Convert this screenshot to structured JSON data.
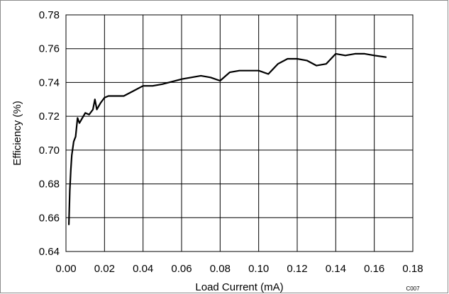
{
  "chart_data": {
    "type": "line",
    "title": "",
    "xlabel": "Load Current (mA)",
    "ylabel": "Efficiency (%)",
    "xlim": [
      0,
      0.18
    ],
    "ylim": [
      0.64,
      0.78
    ],
    "grid": true,
    "legend": "none",
    "code_label": "C007",
    "x_ticks": [
      "0.00",
      "0.02",
      "0.04",
      "0.06",
      "0.08",
      "0.10",
      "0.12",
      "0.14",
      "0.16",
      "0.18"
    ],
    "y_ticks": [
      "0.64",
      "0.66",
      "0.68",
      "0.70",
      "0.72",
      "0.74",
      "0.76",
      "0.78"
    ],
    "line_color": "#000000",
    "series": [
      {
        "x": [
          0.0015,
          0.002,
          0.0025,
          0.003,
          0.004,
          0.005,
          0.006,
          0.007,
          0.008,
          0.01,
          0.012,
          0.014,
          0.015,
          0.016,
          0.017,
          0.018,
          0.02,
          0.022,
          0.025,
          0.03,
          0.035,
          0.04,
          0.045,
          0.05,
          0.06,
          0.07,
          0.075,
          0.08,
          0.085,
          0.09,
          0.1,
          0.105,
          0.11,
          0.115,
          0.12,
          0.125,
          0.13,
          0.135,
          0.14,
          0.145,
          0.15,
          0.155,
          0.16,
          0.166
        ],
        "y": [
          0.656,
          0.676,
          0.688,
          0.697,
          0.705,
          0.708,
          0.719,
          0.716,
          0.718,
          0.722,
          0.721,
          0.724,
          0.73,
          0.724,
          0.726,
          0.728,
          0.731,
          0.732,
          0.732,
          0.732,
          0.735,
          0.738,
          0.738,
          0.739,
          0.742,
          0.744,
          0.743,
          0.741,
          0.746,
          0.747,
          0.747,
          0.745,
          0.751,
          0.754,
          0.754,
          0.753,
          0.75,
          0.751,
          0.757,
          0.756,
          0.757,
          0.757,
          0.756,
          0.755
        ]
      }
    ]
  }
}
